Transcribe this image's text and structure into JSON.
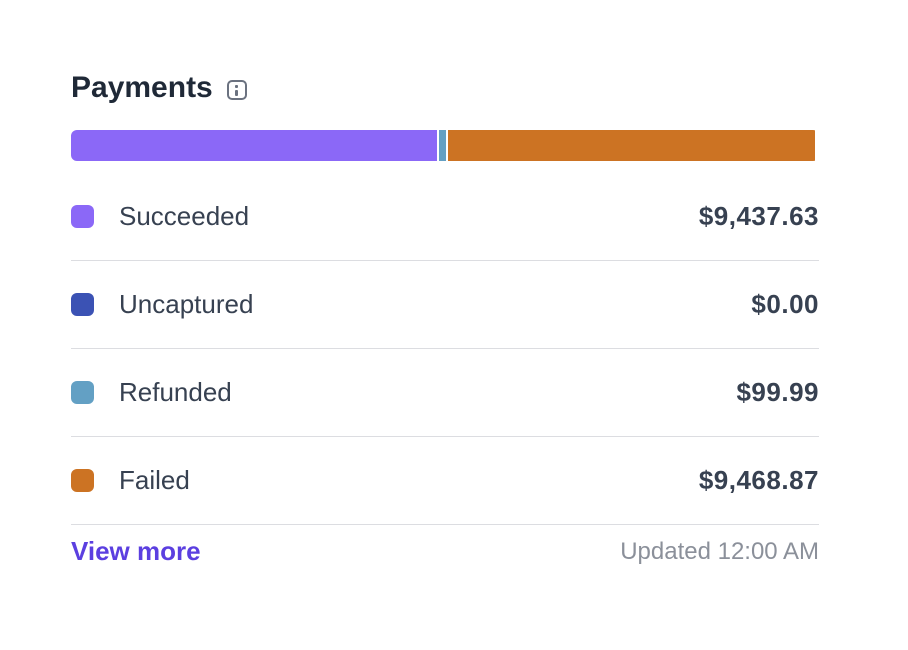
{
  "card": {
    "title": "Payments",
    "info_icon": "info-icon"
  },
  "bar": {
    "segments": [
      {
        "name": "Succeeded",
        "fraction": 0.492,
        "color": "#8b68f7"
      },
      {
        "name": "Uncaptured",
        "fraction": 0.0,
        "color": "#3b52b4"
      },
      {
        "name": "Refunded",
        "fraction": 0.009,
        "color": "#63a0c4"
      },
      {
        "name": "Failed",
        "fraction": 0.493,
        "color": "#cc7323"
      }
    ]
  },
  "rows": [
    {
      "label": "Succeeded",
      "amount": "$9,437.63",
      "color": "#8b68f7"
    },
    {
      "label": "Uncaptured",
      "amount": "$0.00",
      "color": "#3b52b4"
    },
    {
      "label": "Refunded",
      "amount": "$99.99",
      "color": "#63a0c4"
    },
    {
      "label": "Failed",
      "amount": "$9,468.87",
      "color": "#cc7323"
    }
  ],
  "footer": {
    "view_more": "View more",
    "updated": "Updated 12:00 AM"
  }
}
